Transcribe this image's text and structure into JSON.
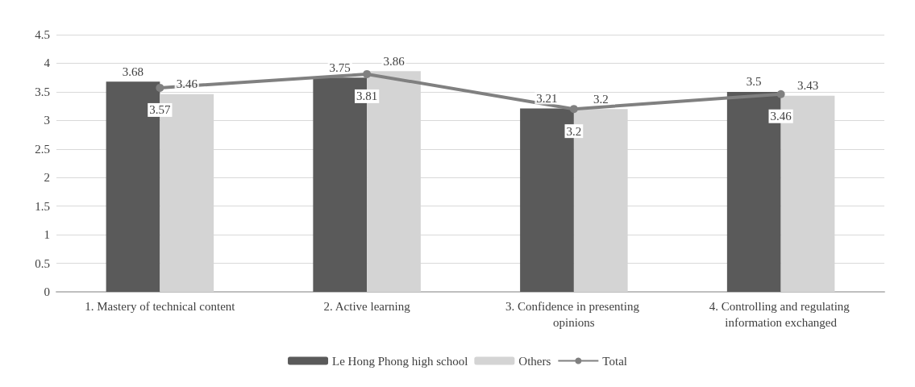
{
  "chart_data": {
    "type": "bar",
    "categories": [
      "1. Mastery of technical content",
      "2. Active learning",
      "3. Confidence in presenting opinions",
      "4. Controlling and regulating information exchanged"
    ],
    "series": [
      {
        "name": "Le Hong Phong high school",
        "color": "#5a5a5a",
        "values": [
          3.68,
          3.75,
          3.21,
          3.5
        ]
      },
      {
        "name": "Others",
        "color": "#d4d4d4",
        "values": [
          3.46,
          3.86,
          3.2,
          3.43
        ]
      },
      {
        "name": "Total",
        "type": "line",
        "color": "#808080",
        "values": [
          3.57,
          3.81,
          3.2,
          3.46
        ]
      }
    ],
    "ylim": [
      0,
      4.5
    ],
    "yticks": [
      0,
      0.5,
      1,
      1.5,
      2,
      2.5,
      3,
      3.5,
      4,
      4.5
    ],
    "grid": "y",
    "legend": "bottom",
    "marker": "circle",
    "data_labels": true
  }
}
